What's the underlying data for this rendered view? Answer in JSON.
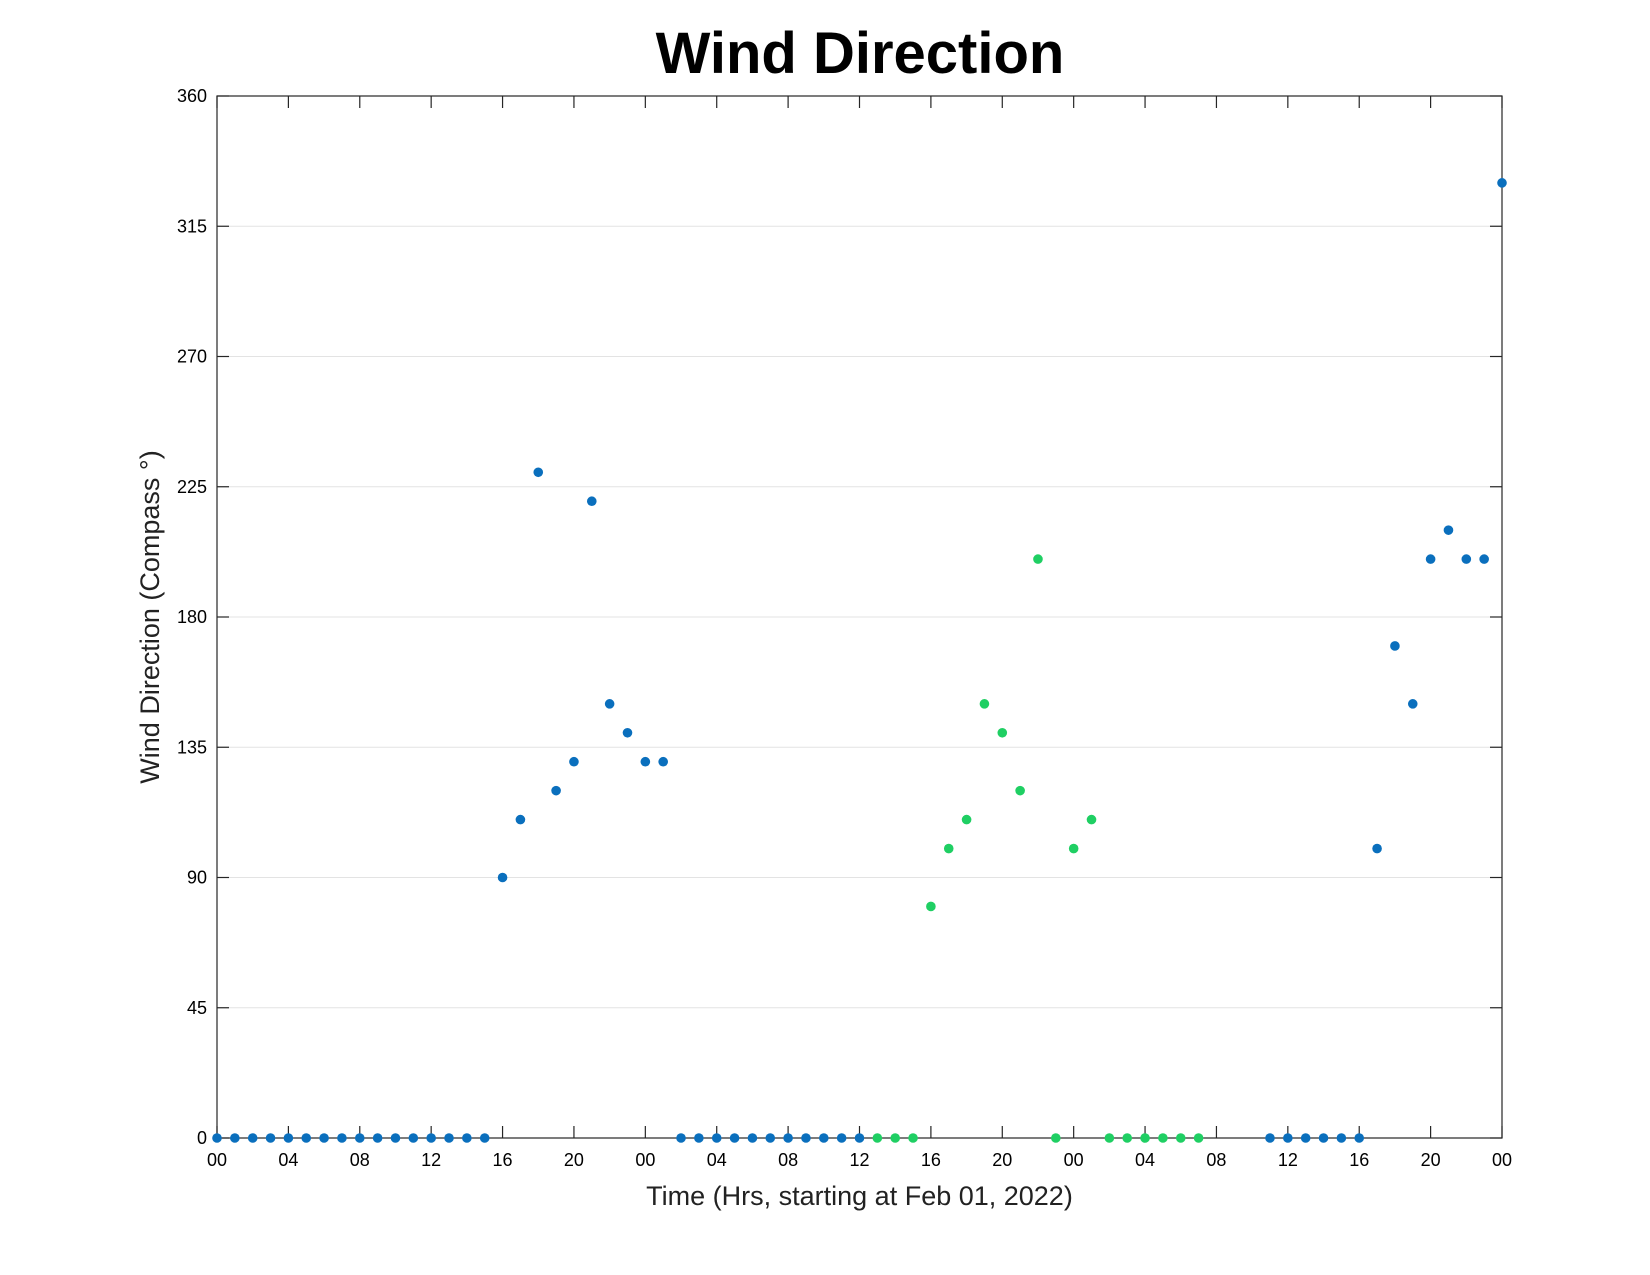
{
  "chart_data": {
    "type": "scatter",
    "title": "Wind Direction",
    "xlabel": "Time (Hrs, starting at Feb 01, 2022)",
    "ylabel": "Wind Direction (Compass °)",
    "xlim": [
      0,
      72
    ],
    "ylim": [
      0,
      360
    ],
    "x_ticks": [
      0,
      4,
      8,
      12,
      16,
      20,
      24,
      28,
      32,
      36,
      40,
      44,
      48,
      52,
      56,
      60,
      64,
      68,
      72
    ],
    "x_tick_labels": [
      "00",
      "04",
      "08",
      "12",
      "16",
      "20",
      "00",
      "04",
      "08",
      "12",
      "16",
      "20",
      "00",
      "04",
      "08",
      "12",
      "16",
      "20",
      "00"
    ],
    "y_ticks": [
      0,
      45,
      90,
      135,
      180,
      225,
      270,
      315,
      360
    ],
    "y_tick_labels": [
      "0",
      "45",
      "90",
      "135",
      "180",
      "225",
      "270",
      "315",
      "360"
    ],
    "grid": "horizontal",
    "legend": "none",
    "colors": {
      "blue": "#0a6fbd",
      "green": "#1fcf63"
    },
    "points": [
      {
        "x": 0,
        "y": 0,
        "c": "blue"
      },
      {
        "x": 1,
        "y": 0,
        "c": "blue"
      },
      {
        "x": 2,
        "y": 0,
        "c": "blue"
      },
      {
        "x": 3,
        "y": 0,
        "c": "blue"
      },
      {
        "x": 4,
        "y": 0,
        "c": "blue"
      },
      {
        "x": 5,
        "y": 0,
        "c": "blue"
      },
      {
        "x": 6,
        "y": 0,
        "c": "blue"
      },
      {
        "x": 7,
        "y": 0,
        "c": "blue"
      },
      {
        "x": 8,
        "y": 0,
        "c": "blue"
      },
      {
        "x": 9,
        "y": 0,
        "c": "blue"
      },
      {
        "x": 10,
        "y": 0,
        "c": "blue"
      },
      {
        "x": 11,
        "y": 0,
        "c": "blue"
      },
      {
        "x": 12,
        "y": 0,
        "c": "blue"
      },
      {
        "x": 13,
        "y": 0,
        "c": "blue"
      },
      {
        "x": 14,
        "y": 0,
        "c": "blue"
      },
      {
        "x": 15,
        "y": 0,
        "c": "blue"
      },
      {
        "x": 16,
        "y": 90,
        "c": "blue"
      },
      {
        "x": 17,
        "y": 110,
        "c": "blue"
      },
      {
        "x": 18,
        "y": 230,
        "c": "blue"
      },
      {
        "x": 19,
        "y": 120,
        "c": "blue"
      },
      {
        "x": 20,
        "y": 130,
        "c": "blue"
      },
      {
        "x": 21,
        "y": 220,
        "c": "blue"
      },
      {
        "x": 22,
        "y": 150,
        "c": "blue"
      },
      {
        "x": 23,
        "y": 140,
        "c": "blue"
      },
      {
        "x": 24,
        "y": 130,
        "c": "blue"
      },
      {
        "x": 25,
        "y": 130,
        "c": "blue"
      },
      {
        "x": 26,
        "y": 0,
        "c": "blue"
      },
      {
        "x": 27,
        "y": 0,
        "c": "blue"
      },
      {
        "x": 28,
        "y": 0,
        "c": "blue"
      },
      {
        "x": 29,
        "y": 0,
        "c": "blue"
      },
      {
        "x": 30,
        "y": 0,
        "c": "blue"
      },
      {
        "x": 31,
        "y": 0,
        "c": "blue"
      },
      {
        "x": 32,
        "y": 0,
        "c": "blue"
      },
      {
        "x": 33,
        "y": 0,
        "c": "blue"
      },
      {
        "x": 34,
        "y": 0,
        "c": "blue"
      },
      {
        "x": 35,
        "y": 0,
        "c": "blue"
      },
      {
        "x": 36,
        "y": 0,
        "c": "blue"
      },
      {
        "x": 37,
        "y": 0,
        "c": "green"
      },
      {
        "x": 38,
        "y": 0,
        "c": "green"
      },
      {
        "x": 39,
        "y": 0,
        "c": "green"
      },
      {
        "x": 40,
        "y": 80,
        "c": "green"
      },
      {
        "x": 41,
        "y": 100,
        "c": "green"
      },
      {
        "x": 42,
        "y": 110,
        "c": "green"
      },
      {
        "x": 43,
        "y": 150,
        "c": "green"
      },
      {
        "x": 44,
        "y": 140,
        "c": "green"
      },
      {
        "x": 45,
        "y": 120,
        "c": "green"
      },
      {
        "x": 46,
        "y": 200,
        "c": "green"
      },
      {
        "x": 47,
        "y": 0,
        "c": "green"
      },
      {
        "x": 48,
        "y": 100,
        "c": "green"
      },
      {
        "x": 49,
        "y": 110,
        "c": "green"
      },
      {
        "x": 50,
        "y": 0,
        "c": "green"
      },
      {
        "x": 51,
        "y": 0,
        "c": "green"
      },
      {
        "x": 52,
        "y": 0,
        "c": "green"
      },
      {
        "x": 53,
        "y": 0,
        "c": "green"
      },
      {
        "x": 54,
        "y": 0,
        "c": "green"
      },
      {
        "x": 55,
        "y": 0,
        "c": "green"
      },
      {
        "x": 59,
        "y": 0,
        "c": "blue"
      },
      {
        "x": 60,
        "y": 0,
        "c": "blue"
      },
      {
        "x": 61,
        "y": 0,
        "c": "blue"
      },
      {
        "x": 62,
        "y": 0,
        "c": "blue"
      },
      {
        "x": 63,
        "y": 0,
        "c": "blue"
      },
      {
        "x": 64,
        "y": 0,
        "c": "blue"
      },
      {
        "x": 65,
        "y": 100,
        "c": "blue"
      },
      {
        "x": 66,
        "y": 170,
        "c": "blue"
      },
      {
        "x": 67,
        "y": 150,
        "c": "blue"
      },
      {
        "x": 68,
        "y": 200,
        "c": "blue"
      },
      {
        "x": 69,
        "y": 210,
        "c": "blue"
      },
      {
        "x": 70,
        "y": 200,
        "c": "blue"
      },
      {
        "x": 71,
        "y": 200,
        "c": "blue"
      },
      {
        "x": 72,
        "y": 330,
        "c": "blue"
      }
    ]
  }
}
